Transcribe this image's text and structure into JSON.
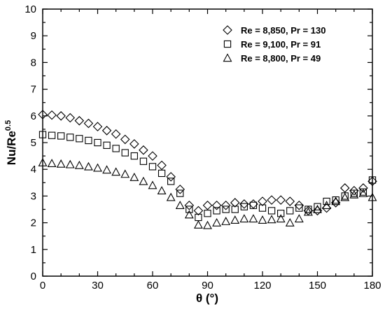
{
  "chart_data": {
    "type": "scatter",
    "xlabel": "θ (°)",
    "ylabel": "Nu/Re",
    "ylabel_sup": "0.5",
    "xlim": [
      0,
      180
    ],
    "ylim": [
      0,
      10
    ],
    "xticks": [
      0,
      30,
      60,
      90,
      120,
      150,
      180
    ],
    "yticks": [
      0,
      1,
      2,
      3,
      4,
      5,
      6,
      7,
      8,
      9,
      10
    ],
    "grid": false,
    "legend_position": "top-right",
    "series": [
      {
        "name": "Re = 8,850, Pr = 130",
        "marker": "diamond",
        "x": [
          0,
          5,
          10,
          15,
          20,
          25,
          30,
          35,
          40,
          45,
          50,
          55,
          60,
          65,
          70,
          75,
          80,
          85,
          90,
          95,
          100,
          105,
          110,
          115,
          120,
          125,
          130,
          135,
          140,
          145,
          150,
          155,
          160,
          165,
          170,
          175,
          180
        ],
        "y": [
          6.05,
          6.03,
          6.0,
          5.93,
          5.82,
          5.72,
          5.6,
          5.45,
          5.32,
          5.12,
          4.95,
          4.72,
          4.5,
          4.15,
          3.72,
          3.25,
          2.65,
          2.45,
          2.65,
          2.65,
          2.65,
          2.75,
          2.7,
          2.7,
          2.8,
          2.85,
          2.85,
          2.8,
          2.65,
          2.45,
          2.45,
          2.55,
          2.75,
          3.3,
          3.2,
          3.3,
          3.55
        ]
      },
      {
        "name": "Re = 9,100, Pr = 91",
        "marker": "square",
        "x": [
          0,
          5,
          10,
          15,
          20,
          25,
          30,
          35,
          40,
          45,
          50,
          55,
          60,
          65,
          70,
          75,
          80,
          85,
          90,
          95,
          100,
          105,
          110,
          115,
          120,
          125,
          130,
          135,
          140,
          145,
          150,
          155,
          160,
          165,
          170,
          175,
          180
        ],
        "y": [
          5.3,
          5.27,
          5.25,
          5.2,
          5.15,
          5.08,
          5.0,
          4.9,
          4.78,
          4.62,
          4.5,
          4.3,
          4.1,
          3.85,
          3.55,
          3.1,
          2.5,
          2.2,
          2.35,
          2.45,
          2.5,
          2.5,
          2.6,
          2.65,
          2.55,
          2.45,
          2.35,
          2.45,
          2.55,
          2.5,
          2.6,
          2.8,
          2.85,
          3.0,
          3.1,
          3.15,
          3.6
        ]
      },
      {
        "name": "Re = 8,800, Pr = 49",
        "marker": "triangle",
        "x": [
          0,
          5,
          10,
          15,
          20,
          25,
          30,
          35,
          40,
          45,
          50,
          55,
          60,
          65,
          70,
          75,
          80,
          85,
          90,
          95,
          100,
          105,
          110,
          115,
          120,
          125,
          130,
          135,
          140,
          145,
          150,
          155,
          160,
          165,
          170,
          175,
          180
        ],
        "y": [
          4.25,
          4.22,
          4.2,
          4.18,
          4.15,
          4.1,
          4.05,
          3.98,
          3.9,
          3.82,
          3.7,
          3.55,
          3.4,
          3.2,
          2.95,
          2.65,
          2.3,
          1.92,
          1.9,
          2.0,
          2.05,
          2.1,
          2.15,
          2.15,
          2.1,
          2.12,
          2.15,
          2.0,
          2.15,
          2.4,
          2.5,
          2.65,
          2.8,
          2.95,
          3.05,
          3.1,
          2.95
        ]
      }
    ]
  }
}
